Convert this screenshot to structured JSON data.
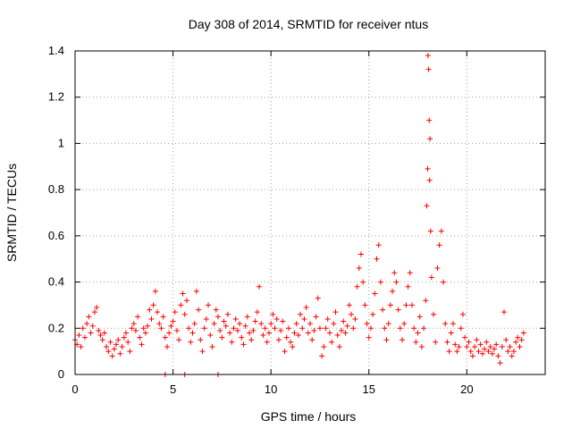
{
  "chart_data": {
    "type": "scatter",
    "title": "Day 308 of 2014, SRMTID for receiver ntus",
    "xlabel": "GPS time / hours",
    "ylabel": "SRMTID / TECUs",
    "xlim": [
      0,
      24
    ],
    "ylim": [
      0,
      1.4
    ],
    "xticks": [
      0,
      5,
      10,
      15,
      20
    ],
    "xtick_labels": [
      "0",
      "5",
      "10",
      "15",
      "20"
    ],
    "yticks": [
      0,
      0.2,
      0.4,
      0.6,
      0.8,
      1.0,
      1.2,
      1.4
    ],
    "ytick_labels": [
      "0",
      "0.2",
      "0.4",
      "0.6",
      "0.8",
      "1",
      "1.2",
      "1.4"
    ],
    "grid": true,
    "marker": "+",
    "series": [
      {
        "name": "SRMTID",
        "color": "#ff0000",
        "points": [
          [
            0.0,
            0.15
          ],
          [
            0.1,
            0.13
          ],
          [
            0.2,
            0.17
          ],
          [
            0.3,
            0.12
          ],
          [
            0.4,
            0.2
          ],
          [
            0.5,
            0.16
          ],
          [
            0.6,
            0.22
          ],
          [
            0.7,
            0.25
          ],
          [
            0.8,
            0.18
          ],
          [
            0.9,
            0.21
          ],
          [
            1.0,
            0.27
          ],
          [
            1.1,
            0.29
          ],
          [
            1.2,
            0.19
          ],
          [
            1.3,
            0.17
          ],
          [
            1.4,
            0.15
          ],
          [
            1.5,
            0.18
          ],
          [
            1.6,
            0.12
          ],
          [
            1.7,
            0.1
          ],
          [
            1.8,
            0.14
          ],
          [
            1.9,
            0.08
          ],
          [
            2.0,
            0.11
          ],
          [
            2.1,
            0.13
          ],
          [
            2.2,
            0.15
          ],
          [
            2.3,
            0.09
          ],
          [
            2.4,
            0.12
          ],
          [
            2.5,
            0.16
          ],
          [
            2.6,
            0.18
          ],
          [
            2.7,
            0.14
          ],
          [
            2.8,
            0.1
          ],
          [
            2.9,
            0.2
          ],
          [
            3.0,
            0.22
          ],
          [
            3.1,
            0.19
          ],
          [
            3.2,
            0.25
          ],
          [
            3.3,
            0.16
          ],
          [
            3.4,
            0.13
          ],
          [
            3.5,
            0.2
          ],
          [
            3.6,
            0.18
          ],
          [
            3.7,
            0.21
          ],
          [
            3.8,
            0.28
          ],
          [
            3.9,
            0.24
          ],
          [
            4.0,
            0.3
          ],
          [
            4.1,
            0.36
          ],
          [
            4.2,
            0.27
          ],
          [
            4.3,
            0.22
          ],
          [
            4.4,
            0.2
          ],
          [
            4.5,
            0.25
          ],
          [
            4.6,
            0.16
          ],
          [
            4.7,
            0.12
          ],
          [
            4.8,
            0.18
          ],
          [
            4.9,
            0.21
          ],
          [
            5.0,
            0.23
          ],
          [
            5.1,
            0.27
          ],
          [
            5.2,
            0.19
          ],
          [
            5.3,
            0.15
          ],
          [
            5.4,
            0.3
          ],
          [
            5.5,
            0.35
          ],
          [
            5.6,
            0.26
          ],
          [
            5.7,
            0.32
          ],
          [
            5.8,
            0.2
          ],
          [
            5.9,
            0.14
          ],
          [
            6.0,
            0.18
          ],
          [
            6.1,
            0.22
          ],
          [
            6.2,
            0.36
          ],
          [
            6.3,
            0.28
          ],
          [
            6.4,
            0.15
          ],
          [
            6.5,
            0.1
          ],
          [
            6.6,
            0.2
          ],
          [
            6.7,
            0.24
          ],
          [
            6.8,
            0.3
          ],
          [
            6.9,
            0.17
          ],
          [
            7.0,
            0.12
          ],
          [
            7.1,
            0.22
          ],
          [
            7.2,
            0.28
          ],
          [
            7.3,
            0.25
          ],
          [
            7.4,
            0.19
          ],
          [
            7.5,
            0.16
          ],
          [
            7.6,
            0.23
          ],
          [
            7.7,
            0.21
          ],
          [
            7.8,
            0.26
          ],
          [
            7.9,
            0.18
          ],
          [
            8.0,
            0.14
          ],
          [
            8.1,
            0.2
          ],
          [
            8.2,
            0.24
          ],
          [
            8.3,
            0.19
          ],
          [
            8.4,
            0.22
          ],
          [
            8.5,
            0.16
          ],
          [
            8.6,
            0.13
          ],
          [
            8.7,
            0.21
          ],
          [
            8.8,
            0.25
          ],
          [
            8.9,
            0.18
          ],
          [
            9.0,
            0.15
          ],
          [
            9.1,
            0.19
          ],
          [
            9.2,
            0.23
          ],
          [
            9.3,
            0.27
          ],
          [
            9.4,
            0.38
          ],
          [
            9.5,
            0.22
          ],
          [
            9.6,
            0.17
          ],
          [
            9.7,
            0.2
          ],
          [
            9.8,
            0.14
          ],
          [
            9.9,
            0.18
          ],
          [
            10.0,
            0.22
          ],
          [
            10.1,
            0.26
          ],
          [
            10.2,
            0.2
          ],
          [
            10.3,
            0.24
          ],
          [
            10.4,
            0.15
          ],
          [
            10.5,
            0.19
          ],
          [
            10.6,
            0.23
          ],
          [
            10.7,
            0.1
          ],
          [
            10.8,
            0.16
          ],
          [
            10.9,
            0.2
          ],
          [
            11.0,
            0.14
          ],
          [
            11.1,
            0.12
          ],
          [
            11.2,
            0.18
          ],
          [
            11.3,
            0.22
          ],
          [
            11.4,
            0.17
          ],
          [
            11.5,
            0.26
          ],
          [
            11.6,
            0.2
          ],
          [
            11.7,
            0.24
          ],
          [
            11.8,
            0.29
          ],
          [
            11.9,
            0.18
          ],
          [
            12.0,
            0.22
          ],
          [
            12.1,
            0.15
          ],
          [
            12.2,
            0.19
          ],
          [
            12.3,
            0.25
          ],
          [
            12.4,
            0.33
          ],
          [
            12.5,
            0.2
          ],
          [
            12.6,
            0.08
          ],
          [
            12.7,
            0.12
          ],
          [
            12.8,
            0.2
          ],
          [
            12.9,
            0.24
          ],
          [
            13.0,
            0.18
          ],
          [
            13.1,
            0.14
          ],
          [
            13.2,
            0.22
          ],
          [
            13.3,
            0.27
          ],
          [
            13.4,
            0.17
          ],
          [
            13.5,
            0.12
          ],
          [
            13.6,
            0.19
          ],
          [
            13.7,
            0.23
          ],
          [
            13.8,
            0.18
          ],
          [
            13.9,
            0.21
          ],
          [
            14.0,
            0.3
          ],
          [
            14.1,
            0.26
          ],
          [
            14.2,
            0.2
          ],
          [
            14.3,
            0.24
          ],
          [
            14.4,
            0.38
          ],
          [
            14.5,
            0.46
          ],
          [
            14.6,
            0.52
          ],
          [
            14.7,
            0.4
          ],
          [
            14.8,
            0.3
          ],
          [
            14.9,
            0.22
          ],
          [
            15.0,
            0.16
          ],
          [
            15.1,
            0.2
          ],
          [
            15.2,
            0.26
          ],
          [
            15.3,
            0.35
          ],
          [
            15.4,
            0.5
          ],
          [
            15.5,
            0.56
          ],
          [
            15.6,
            0.4
          ],
          [
            15.7,
            0.28
          ],
          [
            15.8,
            0.2
          ],
          [
            15.9,
            0.15
          ],
          [
            16.0,
            0.22
          ],
          [
            16.1,
            0.3
          ],
          [
            16.2,
            0.36
          ],
          [
            16.3,
            0.44
          ],
          [
            16.4,
            0.4
          ],
          [
            16.5,
            0.28
          ],
          [
            16.6,
            0.2
          ],
          [
            16.7,
            0.15
          ],
          [
            16.8,
            0.22
          ],
          [
            16.9,
            0.3
          ],
          [
            17.0,
            0.38
          ],
          [
            17.1,
            0.44
          ],
          [
            17.2,
            0.3
          ],
          [
            17.3,
            0.2
          ],
          [
            17.4,
            0.14
          ],
          [
            17.5,
            0.18
          ],
          [
            17.6,
            0.25
          ],
          [
            17.7,
            0.12
          ],
          [
            17.8,
            0.2
          ],
          [
            17.9,
            0.32
          ],
          [
            17.95,
            0.73
          ],
          [
            18.0,
            0.89
          ],
          [
            18.02,
            1.38
          ],
          [
            18.05,
            1.32
          ],
          [
            18.08,
            1.1
          ],
          [
            18.1,
            0.84
          ],
          [
            18.12,
            1.02
          ],
          [
            18.15,
            0.62
          ],
          [
            18.2,
            0.42
          ],
          [
            18.3,
            0.26
          ],
          [
            18.4,
            0.14
          ],
          [
            18.5,
            0.46
          ],
          [
            18.6,
            0.56
          ],
          [
            18.7,
            0.62
          ],
          [
            18.8,
            0.4
          ],
          [
            18.9,
            0.22
          ],
          [
            19.0,
            0.14
          ],
          [
            19.1,
            0.1
          ],
          [
            19.2,
            0.18
          ],
          [
            19.3,
            0.22
          ],
          [
            19.4,
            0.13
          ],
          [
            19.5,
            0.1
          ],
          [
            19.6,
            0.12
          ],
          [
            19.7,
            0.2
          ],
          [
            19.8,
            0.26
          ],
          [
            19.9,
            0.16
          ],
          [
            20.0,
            0.12
          ],
          [
            20.1,
            0.14
          ],
          [
            20.2,
            0.1
          ],
          [
            20.3,
            0.08
          ],
          [
            20.4,
            0.12
          ],
          [
            20.5,
            0.15
          ],
          [
            20.6,
            0.1
          ],
          [
            20.7,
            0.13
          ],
          [
            20.8,
            0.09
          ],
          [
            20.9,
            0.11
          ],
          [
            21.0,
            0.14
          ],
          [
            21.1,
            0.1
          ],
          [
            21.2,
            0.12
          ],
          [
            21.3,
            0.09
          ],
          [
            21.4,
            0.11
          ],
          [
            21.5,
            0.13
          ],
          [
            21.6,
            0.08
          ],
          [
            21.7,
            0.05
          ],
          [
            21.8,
            0.12
          ],
          [
            21.9,
            0.27
          ],
          [
            22.0,
            0.15
          ],
          [
            22.1,
            0.1
          ],
          [
            22.2,
            0.12
          ],
          [
            22.3,
            0.08
          ],
          [
            22.4,
            0.1
          ],
          [
            22.5,
            0.14
          ],
          [
            22.6,
            0.16
          ],
          [
            22.7,
            0.12
          ],
          [
            22.8,
            0.15
          ],
          [
            22.9,
            0.18
          ],
          [
            4.6,
            0.0
          ],
          [
            5.6,
            0.0
          ],
          [
            7.3,
            0.0
          ]
        ]
      }
    ]
  }
}
